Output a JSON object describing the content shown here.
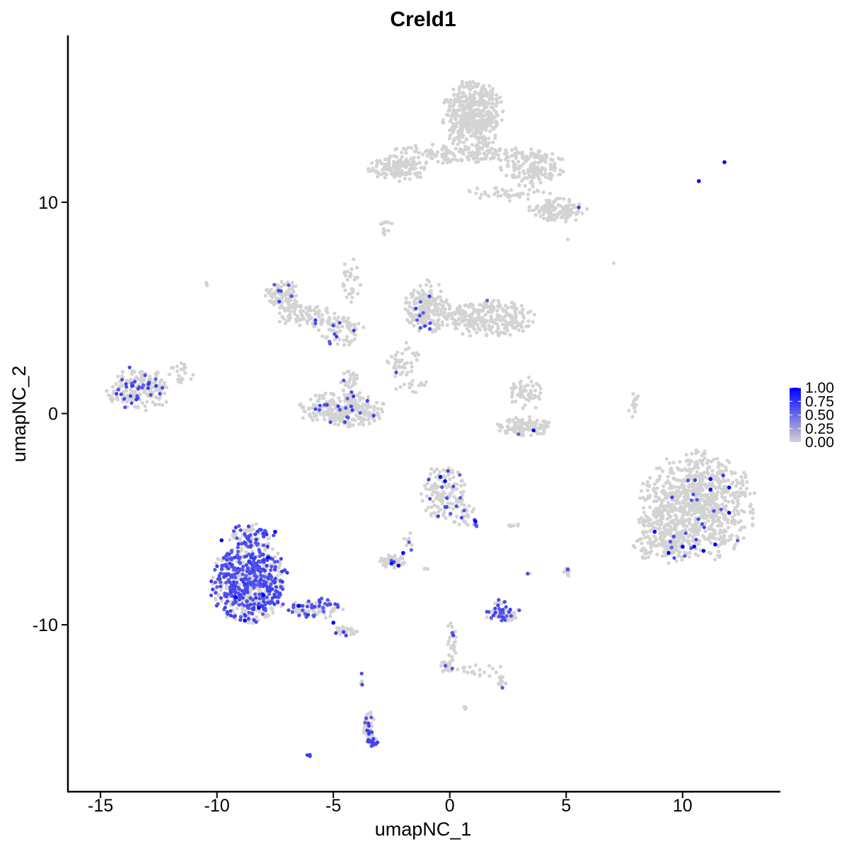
{
  "chart_data": {
    "type": "scatter",
    "title": "Creld1",
    "xlabel": "umapNC_1",
    "ylabel": "umapNC_2",
    "xlim": [
      -16.4,
      14.2
    ],
    "ylim": [
      -17.9,
      17.9
    ],
    "x_ticks": [
      -15,
      -10,
      -5,
      0,
      5,
      10
    ],
    "x_tick_labels": [
      "-15",
      "-10",
      "-5",
      "0",
      "5",
      "10"
    ],
    "y_ticks": [
      -10,
      0,
      10
    ],
    "y_tick_labels": [
      "-10",
      "0",
      "10"
    ],
    "grid": false,
    "color_scale": {
      "low_color": "#d3d3d3",
      "high_color": "#0000ff",
      "range": [
        0,
        1
      ],
      "breaks": [
        1.0,
        0.75,
        0.5,
        0.25,
        0.0
      ],
      "break_labels": [
        "1.00",
        "0.75",
        "0.50",
        "0.25",
        "0.00"
      ],
      "legend_position": "right"
    },
    "clusters": [
      {
        "cx": 1.0,
        "cy": 14.1,
        "rx": 1.3,
        "ry": 1.7,
        "n": 460,
        "expr_frac": 0
      },
      {
        "cx": 0.5,
        "cy": 12.3,
        "rx": 3.4,
        "ry": 0.45,
        "n": 160,
        "expr_frac": 0
      },
      {
        "cx": -2.2,
        "cy": 11.6,
        "rx": 1.3,
        "ry": 0.6,
        "n": 140,
        "expr_frac": 0
      },
      {
        "cx": 3.6,
        "cy": 11.6,
        "rx": 1.4,
        "ry": 0.9,
        "n": 150,
        "expr_frac": 0.01
      },
      {
        "cx": 4.6,
        "cy": 9.6,
        "rx": 1.3,
        "ry": 0.6,
        "n": 130,
        "expr_frac": 0.01
      },
      {
        "cx": 2.5,
        "cy": 10.4,
        "rx": 2.1,
        "ry": 0.35,
        "n": 50,
        "expr_frac": 0
      },
      {
        "cx": -2.8,
        "cy": 8.6,
        "rx": 0.2,
        "ry": 0.2,
        "n": 6,
        "expr_frac": 0
      },
      {
        "cx": -7.2,
        "cy": 5.6,
        "rx": 0.8,
        "ry": 0.7,
        "n": 90,
        "expr_frac": 0.08
      },
      {
        "cx": -6.1,
        "cy": 4.6,
        "rx": 1.3,
        "ry": 0.6,
        "n": 90,
        "expr_frac": 0.04
      },
      {
        "cx": -4.7,
        "cy": 4.0,
        "rx": 1.0,
        "ry": 0.8,
        "n": 70,
        "expr_frac": 0.08
      },
      {
        "cx": -4.3,
        "cy": 6.3,
        "rx": 0.5,
        "ry": 1.2,
        "n": 30,
        "expr_frac": 0.03
      },
      {
        "cx": -4.6,
        "cy": 0.2,
        "rx": 1.9,
        "ry": 0.85,
        "n": 290,
        "expr_frac": 0.08
      },
      {
        "cx": -4.3,
        "cy": 1.4,
        "rx": 0.4,
        "ry": 0.8,
        "n": 30,
        "expr_frac": 0.04
      },
      {
        "cx": -1.0,
        "cy": 5.0,
        "rx": 1.0,
        "ry": 1.3,
        "n": 210,
        "expr_frac": 0.05
      },
      {
        "cx": 1.6,
        "cy": 4.5,
        "rx": 2.2,
        "ry": 0.85,
        "n": 270,
        "expr_frac": 0.01
      },
      {
        "cx": -2.0,
        "cy": 2.5,
        "rx": 0.7,
        "ry": 0.9,
        "n": 40,
        "expr_frac": 0.03
      },
      {
        "cx": -1.6,
        "cy": 1.3,
        "rx": 0.9,
        "ry": 0.3,
        "n": 14,
        "expr_frac": 0
      },
      {
        "cx": -13.4,
        "cy": 1.1,
        "rx": 1.4,
        "ry": 1.1,
        "n": 200,
        "expr_frac": 0.18
      },
      {
        "cx": -11.5,
        "cy": 1.9,
        "rx": 0.6,
        "ry": 0.55,
        "n": 25,
        "expr_frac": 0
      },
      {
        "cx": 3.3,
        "cy": 1.0,
        "rx": 0.7,
        "ry": 0.9,
        "n": 55,
        "expr_frac": 0
      },
      {
        "cx": 3.2,
        "cy": -0.6,
        "rx": 1.2,
        "ry": 0.45,
        "n": 100,
        "expr_frac": 0.01
      },
      {
        "cx": 7.9,
        "cy": 0.3,
        "rx": 0.25,
        "ry": 0.8,
        "n": 14,
        "expr_frac": 0
      },
      {
        "cx": 10.6,
        "cy": -4.4,
        "rx": 2.5,
        "ry": 2.6,
        "n": 900,
        "expr_frac": 0.02
      },
      {
        "cx": 9.2,
        "cy": -6.1,
        "rx": 1.3,
        "ry": 1.0,
        "n": 120,
        "expr_frac": 0.03
      },
      {
        "cx": -0.3,
        "cy": -3.7,
        "rx": 1.0,
        "ry": 1.3,
        "n": 140,
        "expr_frac": 0.08
      },
      {
        "cx": 0.7,
        "cy": -4.8,
        "rx": 0.6,
        "ry": 0.6,
        "n": 25,
        "expr_frac": 0.1
      },
      {
        "cx": 1.1,
        "cy": -5.2,
        "rx": 0.2,
        "ry": 0.3,
        "n": 8,
        "expr_frac": 0.2
      },
      {
        "cx": -2.4,
        "cy": -7.0,
        "rx": 0.6,
        "ry": 0.35,
        "n": 45,
        "expr_frac": 0.15
      },
      {
        "cx": -1.8,
        "cy": -6.1,
        "rx": 0.25,
        "ry": 0.5,
        "n": 8,
        "expr_frac": 0.2
      },
      {
        "cx": -8.6,
        "cy": -8.0,
        "rx": 1.7,
        "ry": 1.9,
        "n": 700,
        "expr_frac": 0.52
      },
      {
        "cx": -8.5,
        "cy": -5.8,
        "rx": 1.0,
        "ry": 0.6,
        "n": 80,
        "expr_frac": 0.3
      },
      {
        "cx": -5.8,
        "cy": -9.2,
        "rx": 1.2,
        "ry": 0.5,
        "n": 90,
        "expr_frac": 0.38
      },
      {
        "cx": -4.5,
        "cy": -10.3,
        "rx": 0.6,
        "ry": 0.3,
        "n": 30,
        "expr_frac": 0.3
      },
      {
        "cx": 2.3,
        "cy": -9.5,
        "rx": 0.8,
        "ry": 0.35,
        "n": 70,
        "expr_frac": 0.4
      },
      {
        "cx": 2.1,
        "cy": -8.9,
        "rx": 0.3,
        "ry": 0.2,
        "n": 10,
        "expr_frac": 0.3
      },
      {
        "cx": 5.1,
        "cy": -7.5,
        "rx": 0.2,
        "ry": 0.35,
        "n": 12,
        "expr_frac": 0.2
      },
      {
        "cx": 3.4,
        "cy": -7.6,
        "rx": 0.15,
        "ry": 0.15,
        "n": 3,
        "expr_frac": 0.3
      },
      {
        "cx": 0.1,
        "cy": -10.8,
        "rx": 0.25,
        "ry": 1.2,
        "n": 30,
        "expr_frac": 0.05
      },
      {
        "cx": -0.1,
        "cy": -12.0,
        "rx": 0.3,
        "ry": 0.35,
        "n": 20,
        "expr_frac": 0.2
      },
      {
        "cx": 1.4,
        "cy": -12.2,
        "rx": 1.1,
        "ry": 0.3,
        "n": 20,
        "expr_frac": 0.1
      },
      {
        "cx": 2.2,
        "cy": -12.7,
        "rx": 0.3,
        "ry": 0.3,
        "n": 15,
        "expr_frac": 0.2
      },
      {
        "cx": -3.5,
        "cy": -14.7,
        "rx": 0.25,
        "ry": 0.6,
        "n": 40,
        "expr_frac": 0.25
      },
      {
        "cx": -3.3,
        "cy": -15.5,
        "rx": 0.3,
        "ry": 0.25,
        "n": 30,
        "expr_frac": 0.5
      },
      {
        "cx": -3.8,
        "cy": -12.6,
        "rx": 0.1,
        "ry": 0.5,
        "n": 5,
        "expr_frac": 0.4
      },
      {
        "cx": -6.0,
        "cy": -16.2,
        "rx": 0.15,
        "ry": 0.1,
        "n": 4,
        "expr_frac": 0.5
      },
      {
        "cx": 7.0,
        "cy": 7.1,
        "rx": 0.05,
        "ry": 0.05,
        "n": 1,
        "expr_frac": 0
      },
      {
        "cx": 5.1,
        "cy": 8.2,
        "rx": 0.05,
        "ry": 0.05,
        "n": 1,
        "expr_frac": 0
      },
      {
        "cx": -10.5,
        "cy": 6.1,
        "rx": 0.1,
        "ry": 0.1,
        "n": 3,
        "expr_frac": 0
      },
      {
        "cx": -2.7,
        "cy": 9.0,
        "rx": 0.3,
        "ry": 0.1,
        "n": 6,
        "expr_frac": 0
      },
      {
        "cx": 2.8,
        "cy": -5.3,
        "rx": 0.3,
        "ry": 0.08,
        "n": 6,
        "expr_frac": 0
      },
      {
        "cx": -1.0,
        "cy": -7.3,
        "rx": 0.15,
        "ry": 0.1,
        "n": 3,
        "expr_frac": 0
      },
      {
        "cx": 0.6,
        "cy": -13.9,
        "rx": 0.2,
        "ry": 0.1,
        "n": 4,
        "expr_frac": 0
      }
    ],
    "high_expressors": [
      [
        -9.8,
        -6.0
      ],
      [
        -7.5,
        -5.6
      ],
      [
        -7.8,
        -6.8
      ],
      [
        -9.2,
        -8.7
      ],
      [
        -8.0,
        -8.6
      ],
      [
        -8.2,
        -9.2
      ],
      [
        -8.8,
        -9.8
      ],
      [
        -6.5,
        -9.1
      ],
      [
        -5.0,
        -9.9
      ],
      [
        -2.5,
        -7.1
      ],
      [
        -2.2,
        -7.2
      ],
      [
        -2.0,
        -6.6
      ],
      [
        -0.4,
        -3.0
      ],
      [
        -0.2,
        -3.2
      ],
      [
        1.1,
        -5.1
      ],
      [
        3.6,
        -0.8
      ],
      [
        8.8,
        -5.6
      ],
      [
        9.4,
        -6.6
      ],
      [
        10.0,
        -6.3
      ],
      [
        10.5,
        -6.3
      ],
      [
        10.9,
        -6.5
      ],
      [
        11.2,
        -3.1
      ],
      [
        11.2,
        -3.6
      ],
      [
        11.4,
        -6.2
      ],
      [
        12.0,
        -4.7
      ],
      [
        12.0,
        -3.5
      ],
      [
        11.8,
        11.9
      ],
      [
        10.7,
        11.0
      ]
    ]
  }
}
